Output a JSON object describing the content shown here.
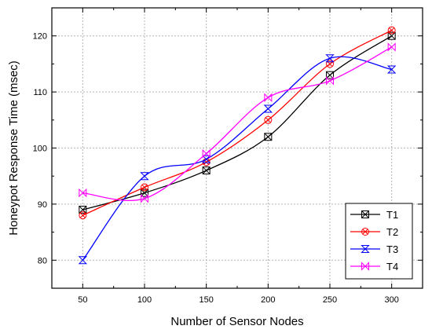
{
  "chart_data": {
    "type": "line",
    "xlabel": "Number of Sensor Nodes",
    "ylabel": "Honeypot Response Time (msec)",
    "x": [
      50,
      100,
      150,
      200,
      250,
      300
    ],
    "xlim": [
      25,
      325
    ],
    "ylim": [
      75,
      125
    ],
    "xticks": [
      50,
      100,
      150,
      200,
      250,
      300
    ],
    "yticks": [
      80,
      90,
      100,
      110,
      120
    ],
    "grid": true,
    "smooth": true,
    "legend_position": "bottom-right",
    "series": [
      {
        "name": "T1",
        "color": "#000000",
        "marker": "boxed-x",
        "values": [
          89,
          92,
          96,
          102,
          113,
          120
        ]
      },
      {
        "name": "T2",
        "color": "#ff0000",
        "marker": "circled-x",
        "values": [
          88,
          93,
          97.5,
          105,
          115,
          121
        ]
      },
      {
        "name": "T3",
        "color": "#0000ff",
        "marker": "hourglass-x",
        "values": [
          80,
          95,
          98,
          107,
          116,
          114
        ]
      },
      {
        "name": "T4",
        "color": "#ff00ff",
        "marker": "bowtie-x",
        "values": [
          92,
          91,
          99,
          109,
          112,
          118
        ]
      }
    ]
  }
}
